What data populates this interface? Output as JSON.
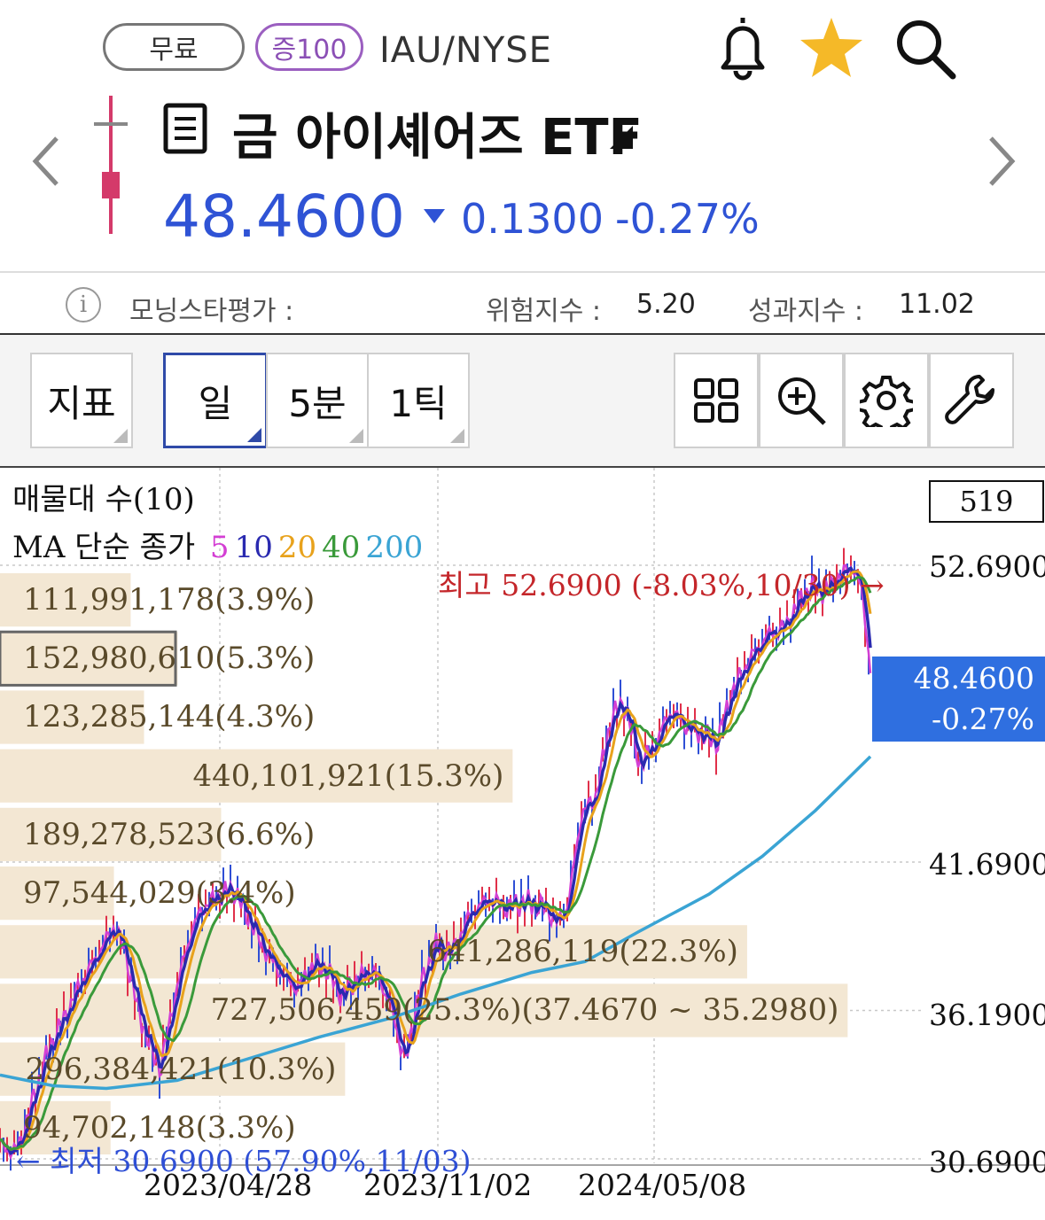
{
  "header": {
    "badge_free": "무료",
    "badge_margin": "증100",
    "ticker": "IAU/NYSE",
    "name": "금 아이셰어즈 ETF",
    "price": "48.4600",
    "change": "0.1300",
    "change_pct": "-0.27%",
    "price_color": "#2f53d5",
    "icons": [
      "bell-icon",
      "star-icon",
      "search-icon",
      "chevron-left-icon",
      "chevron-right-icon",
      "document-icon"
    ]
  },
  "info": {
    "rating_label": "모닝스타평가 :",
    "risk_label": "위험지수 :",
    "risk_value": "5.20",
    "perf_label": "성과지수 :",
    "perf_value": "11.02"
  },
  "toolbar": {
    "indicator": "지표",
    "period_day": "일",
    "period_5min": "5분",
    "period_tick": "1틱",
    "icons": [
      "grid-icon",
      "zoom-in-icon",
      "settings-icon",
      "wrench-icon"
    ]
  },
  "chart": {
    "legend_volume_profile": "매물대 수(10)",
    "legend_ma_prefix": "MA 단순 종가",
    "ma_periods": [
      {
        "label": "5",
        "color": "#d43fd4"
      },
      {
        "label": "10",
        "color": "#2a2ab0"
      },
      {
        "label": "20",
        "color": "#e8a21c"
      },
      {
        "label": "40",
        "color": "#3a9a3a"
      },
      {
        "label": "200",
        "color": "#3aa4d4"
      }
    ],
    "count_box": "519",
    "current_price": "48.4600",
    "current_pct": "-0.27%",
    "high_label": "최고 52.6900 (-8.03%,10/30) →",
    "low_label": "← 최저 30.6900 (57.90%,11/03)",
    "y_labels": [
      "52.6900",
      "41.6900",
      "36.1900",
      "30.6900"
    ],
    "x_labels": [
      "2023/04/28",
      "2023/11/02",
      "2024/05/08"
    ],
    "volume_profile": [
      {
        "label": "111,991,178(3.9%)",
        "pct": 3.9
      },
      {
        "label": "152,980,610(5.3%)",
        "pct": 5.3
      },
      {
        "label": "123,285,144(4.3%)",
        "pct": 4.3
      },
      {
        "label": "440,101,921(15.3%)",
        "pct": 15.3
      },
      {
        "label": "189,278,523(6.6%)",
        "pct": 6.6
      },
      {
        "label": "97,544,029(3.4%)",
        "pct": 3.4
      },
      {
        "label": "641,286,119(22.3%)",
        "pct": 22.3
      },
      {
        "label": "727,506,459(25.3%)(37.4670 ~ 35.2980)",
        "pct": 25.3
      },
      {
        "label": "296,384,421(10.3%)",
        "pct": 10.3
      },
      {
        "label": "94,702,148(3.3%)",
        "pct": 3.3
      }
    ]
  }
}
